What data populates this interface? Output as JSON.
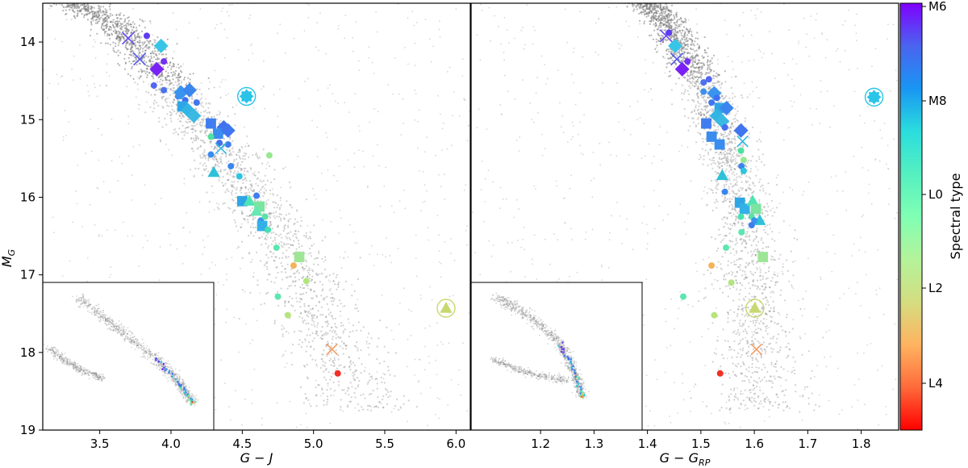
{
  "chart_data": [
    {
      "type": "scatter",
      "panel": "left",
      "xlabel": "G − J",
      "ylabel": "M_G",
      "xlim": [
        3.1,
        6.1
      ],
      "ylim": [
        19.0,
        13.5
      ],
      "y_inverted": true,
      "xticks": [
        "3.5",
        "4.0",
        "4.5",
        "5.0",
        "5.5",
        "6.0"
      ],
      "xtick_values": [
        3.5,
        4.0,
        4.5,
        5.0,
        5.5,
        6.0
      ],
      "yticks": [
        "14",
        "15",
        "16",
        "17",
        "18",
        "19"
      ],
      "ytick_values": [
        14,
        15,
        16,
        17,
        18,
        19
      ],
      "background": "grey density of field stars along the main sequence",
      "inset": "full colour-magnitude diagram with sample highlighted (lower-left)",
      "points": [
        {
          "x": 3.7,
          "y": 13.95,
          "m": "x",
          "c": "#6a4af5",
          "s": 10
        },
        {
          "x": 3.78,
          "y": 14.22,
          "m": "x",
          "c": "#5a5cf0",
          "s": 10
        },
        {
          "x": 3.83,
          "y": 13.92,
          "m": "circle",
          "c": "#5e3cf3",
          "s": 5
        },
        {
          "x": 3.93,
          "y": 14.05,
          "m": "diamond",
          "c": "#39c5e6",
          "s": 9
        },
        {
          "x": 3.9,
          "y": 14.35,
          "m": "diamond",
          "c": "#7a22f5",
          "s": 9
        },
        {
          "x": 3.95,
          "y": 14.25,
          "m": "circle",
          "c": "#7430f4",
          "s": 5
        },
        {
          "x": 3.88,
          "y": 14.56,
          "m": "circle",
          "c": "#5266f0",
          "s": 5
        },
        {
          "x": 3.95,
          "y": 14.62,
          "m": "circle",
          "c": "#4a72ee",
          "s": 5
        },
        {
          "x": 4.05,
          "y": 14.7,
          "m": "circle",
          "c": "#3e8eee",
          "s": 5
        },
        {
          "x": 4.07,
          "y": 14.65,
          "m": "diamond",
          "c": "#3a94ee",
          "s": 9
        },
        {
          "x": 4.13,
          "y": 14.62,
          "m": "diamond",
          "c": "#3a86ee",
          "s": 9
        },
        {
          "x": 4.1,
          "y": 14.75,
          "m": "circle",
          "c": "#3f6ef0",
          "s": 5
        },
        {
          "x": 4.08,
          "y": 14.83,
          "m": "square",
          "c": "#2ea6e6",
          "s": 8
        },
        {
          "x": 4.12,
          "y": 14.88,
          "m": "diamond",
          "c": "#32b5e4",
          "s": 9
        },
        {
          "x": 4.16,
          "y": 14.95,
          "m": "diamond",
          "c": "#3ab9e3",
          "s": 9
        },
        {
          "x": 4.18,
          "y": 14.78,
          "m": "circle",
          "c": "#4276ee",
          "s": 5
        },
        {
          "x": 4.28,
          "y": 15.05,
          "m": "square",
          "c": "#3f7df0",
          "s": 8
        },
        {
          "x": 4.37,
          "y": 15.1,
          "m": "diamond",
          "c": "#3f72f0",
          "s": 9
        },
        {
          "x": 4.33,
          "y": 15.18,
          "m": "square",
          "c": "#3a8cee",
          "s": 8
        },
        {
          "x": 4.4,
          "y": 15.14,
          "m": "diamond",
          "c": "#3f76f0",
          "s": 9
        },
        {
          "x": 4.28,
          "y": 15.22,
          "m": "circle",
          "c": "#50e0a0",
          "s": 5
        },
        {
          "x": 4.34,
          "y": 15.3,
          "m": "circle",
          "c": "#4470ee",
          "s": 5
        },
        {
          "x": 4.4,
          "y": 15.32,
          "m": "circle",
          "c": "#3f7df0",
          "s": 5
        },
        {
          "x": 4.35,
          "y": 15.37,
          "m": "x",
          "c": "#2cb8e6",
          "s": 9
        },
        {
          "x": 4.28,
          "y": 15.45,
          "m": "circle",
          "c": "#3a8cee",
          "s": 5
        },
        {
          "x": 4.3,
          "y": 15.68,
          "m": "triangle",
          "c": "#2ec1d8",
          "s": 8
        },
        {
          "x": 4.42,
          "y": 15.6,
          "m": "circle",
          "c": "#3a86ee",
          "s": 5
        },
        {
          "x": 4.48,
          "y": 15.73,
          "m": "circle",
          "c": "#2ec4e0",
          "s": 5
        },
        {
          "x": 4.69,
          "y": 15.46,
          "m": "circle",
          "c": "#98e890",
          "s": 5
        },
        {
          "x": 4.5,
          "y": 16.05,
          "m": "square",
          "c": "#2ea6e6",
          "s": 8
        },
        {
          "x": 4.55,
          "y": 16.05,
          "m": "triangle",
          "c": "#4ee4b6",
          "s": 8
        },
        {
          "x": 4.6,
          "y": 15.98,
          "m": "circle",
          "c": "#3f7df0",
          "s": 5
        },
        {
          "x": 4.62,
          "y": 16.12,
          "m": "square",
          "c": "#7ae4a0",
          "s": 8
        },
        {
          "x": 4.6,
          "y": 16.18,
          "m": "triangle",
          "c": "#66e8b0",
          "s": 8
        },
        {
          "x": 4.63,
          "y": 16.3,
          "m": "circle",
          "c": "#3a92ee",
          "s": 5
        },
        {
          "x": 4.64,
          "y": 16.37,
          "m": "square",
          "c": "#34b0e8",
          "s": 8
        },
        {
          "x": 4.68,
          "y": 16.42,
          "m": "circle",
          "c": "#4ae0b0",
          "s": 5
        },
        {
          "x": 4.66,
          "y": 16.25,
          "m": "circle",
          "c": "#5ae0a8",
          "s": 5
        },
        {
          "x": 4.74,
          "y": 16.65,
          "m": "circle",
          "c": "#5ee6b0",
          "s": 5
        },
        {
          "x": 4.86,
          "y": 16.88,
          "m": "circle",
          "c": "#f3b35c",
          "s": 5
        },
        {
          "x": 4.9,
          "y": 16.77,
          "m": "square",
          "c": "#9ee696",
          "s": 8
        },
        {
          "x": 4.95,
          "y": 17.08,
          "m": "circle",
          "c": "#b0e680",
          "s": 5
        },
        {
          "x": 4.75,
          "y": 17.28,
          "m": "circle",
          "c": "#5ce6b0",
          "s": 5
        },
        {
          "x": 4.82,
          "y": 17.52,
          "m": "circle",
          "c": "#b8e47c",
          "s": 5
        },
        {
          "x": 5.13,
          "y": 17.96,
          "m": "x",
          "c": "#f59b62",
          "s": 9
        },
        {
          "x": 5.17,
          "y": 18.27,
          "m": "circle",
          "c": "#f03025",
          "s": 5
        },
        {
          "x": 4.53,
          "y": 14.7,
          "m": "star",
          "c": "#2ac4e8",
          "s": 9,
          "ring": true
        },
        {
          "x": 5.93,
          "y": 17.43,
          "m": "triangle",
          "c": "#c8d870",
          "s": 8,
          "ring": true
        }
      ]
    },
    {
      "type": "scatter",
      "panel": "right",
      "xlabel": "G − G_RP",
      "ylabel": "",
      "xlim": [
        1.07,
        1.87
      ],
      "ylim": [
        19.0,
        13.5
      ],
      "y_inverted": true,
      "xticks": [
        "1.2",
        "1.3",
        "1.4",
        "1.5",
        "1.6",
        "1.7",
        "1.8"
      ],
      "xtick_values": [
        1.2,
        1.3,
        1.4,
        1.5,
        1.6,
        1.7,
        1.8
      ],
      "background": "grey density of field stars along the main sequence",
      "inset": "full colour-magnitude diagram with sample highlighted (lower-left)",
      "points": [
        {
          "x": 1.435,
          "y": 13.92,
          "m": "x",
          "c": "#6a4af5",
          "s": 10
        },
        {
          "x": 1.44,
          "y": 13.88,
          "m": "circle",
          "c": "#5e3cf3",
          "s": 5
        },
        {
          "x": 1.452,
          "y": 14.05,
          "m": "diamond",
          "c": "#39c5e6",
          "s": 9
        },
        {
          "x": 1.455,
          "y": 14.22,
          "m": "x",
          "c": "#5a5cf0",
          "s": 10
        },
        {
          "x": 1.465,
          "y": 14.35,
          "m": "diamond",
          "c": "#7a22f5",
          "s": 9
        },
        {
          "x": 1.475,
          "y": 14.25,
          "m": "circle",
          "c": "#7430f4",
          "s": 5
        },
        {
          "x": 1.505,
          "y": 14.52,
          "m": "circle",
          "c": "#4a72ee",
          "s": 5
        },
        {
          "x": 1.515,
          "y": 14.48,
          "m": "circle",
          "c": "#5266f0",
          "s": 5
        },
        {
          "x": 1.505,
          "y": 14.64,
          "m": "circle",
          "c": "#3e8eee",
          "s": 5
        },
        {
          "x": 1.52,
          "y": 14.78,
          "m": "circle",
          "c": "#4276ee",
          "s": 5
        },
        {
          "x": 1.525,
          "y": 14.66,
          "m": "diamond",
          "c": "#3a94ee",
          "s": 9
        },
        {
          "x": 1.53,
          "y": 14.72,
          "m": "circle",
          "c": "#3f6ef0",
          "s": 5
        },
        {
          "x": 1.535,
          "y": 14.85,
          "m": "square",
          "c": "#2ea6e6",
          "s": 8
        },
        {
          "x": 1.53,
          "y": 14.95,
          "m": "diamond",
          "c": "#32b5e4",
          "s": 9
        },
        {
          "x": 1.548,
          "y": 14.85,
          "m": "diamond",
          "c": "#3a86ee",
          "s": 9
        },
        {
          "x": 1.54,
          "y": 15.02,
          "m": "diamond",
          "c": "#3ab9e3",
          "s": 9
        },
        {
          "x": 1.51,
          "y": 15.05,
          "m": "square",
          "c": "#3f7df0",
          "s": 8
        },
        {
          "x": 1.52,
          "y": 15.22,
          "m": "square",
          "c": "#3a8cee",
          "s": 8
        },
        {
          "x": 1.535,
          "y": 15.32,
          "m": "square",
          "c": "#3a8cee",
          "s": 8
        },
        {
          "x": 1.545,
          "y": 15.1,
          "m": "circle",
          "c": "#4470ee",
          "s": 5
        },
        {
          "x": 1.575,
          "y": 15.14,
          "m": "diamond",
          "c": "#3f76f0",
          "s": 9
        },
        {
          "x": 1.575,
          "y": 15.4,
          "m": "circle",
          "c": "#50e0a0",
          "s": 5
        },
        {
          "x": 1.578,
          "y": 15.28,
          "m": "x",
          "c": "#2cb8e6",
          "s": 9
        },
        {
          "x": 1.58,
          "y": 15.52,
          "m": "circle",
          "c": "#98e890",
          "s": 5
        },
        {
          "x": 1.576,
          "y": 15.6,
          "m": "circle",
          "c": "#3a86ee",
          "s": 5
        },
        {
          "x": 1.58,
          "y": 15.66,
          "m": "circle",
          "c": "#2ec4e0",
          "s": 5
        },
        {
          "x": 1.54,
          "y": 15.72,
          "m": "triangle",
          "c": "#2ec1d8",
          "s": 8
        },
        {
          "x": 1.545,
          "y": 15.93,
          "m": "circle",
          "c": "#3a86ee",
          "s": 5
        },
        {
          "x": 1.573,
          "y": 16.07,
          "m": "square",
          "c": "#2ea6e6",
          "s": 8
        },
        {
          "x": 1.582,
          "y": 16.15,
          "m": "square",
          "c": "#34b0e8",
          "s": 8
        },
        {
          "x": 1.597,
          "y": 16.05,
          "m": "triangle",
          "c": "#4ee4b6",
          "s": 8
        },
        {
          "x": 1.603,
          "y": 16.15,
          "m": "square",
          "c": "#7ae4a0",
          "s": 8
        },
        {
          "x": 1.61,
          "y": 16.3,
          "m": "triangle",
          "c": "#2ec1d8",
          "s": 8
        },
        {
          "x": 1.595,
          "y": 16.25,
          "m": "circle",
          "c": "#5ae0a8",
          "s": 5
        },
        {
          "x": 1.6,
          "y": 16.3,
          "m": "circle",
          "c": "#3a92ee",
          "s": 5
        },
        {
          "x": 1.595,
          "y": 16.36,
          "m": "circle",
          "c": "#3f7df0",
          "s": 5
        },
        {
          "x": 1.575,
          "y": 16.25,
          "m": "circle",
          "c": "#4ae0b0",
          "s": 5
        },
        {
          "x": 1.576,
          "y": 16.45,
          "m": "circle",
          "c": "#5ce6b0",
          "s": 5
        },
        {
          "x": 1.616,
          "y": 16.77,
          "m": "square",
          "c": "#9ee696",
          "s": 8
        },
        {
          "x": 1.547,
          "y": 16.65,
          "m": "circle",
          "c": "#5ee6b0",
          "s": 5
        },
        {
          "x": 1.52,
          "y": 16.88,
          "m": "circle",
          "c": "#f3b35c",
          "s": 5
        },
        {
          "x": 1.557,
          "y": 17.1,
          "m": "circle",
          "c": "#b0e680",
          "s": 5
        },
        {
          "x": 1.467,
          "y": 17.28,
          "m": "circle",
          "c": "#5ce6b0",
          "s": 5
        },
        {
          "x": 1.525,
          "y": 17.52,
          "m": "circle",
          "c": "#b8e47c",
          "s": 5
        },
        {
          "x": 1.604,
          "y": 17.96,
          "m": "x",
          "c": "#f59b62",
          "s": 9
        },
        {
          "x": 1.536,
          "y": 18.27,
          "m": "circle",
          "c": "#f03025",
          "s": 5
        },
        {
          "x": 1.824,
          "y": 14.71,
          "m": "star",
          "c": "#2ac4e8",
          "s": 9,
          "ring": true
        },
        {
          "x": 1.601,
          "y": 17.43,
          "m": "triangle",
          "c": "#c8d870",
          "s": 8,
          "ring": true
        }
      ]
    }
  ],
  "colorbar": {
    "label": "Spectral type",
    "ticks": [
      "M6",
      "M8",
      "L0",
      "L2",
      "L4"
    ],
    "colors": [
      "#8000ff",
      "#4a64f0",
      "#1996f3",
      "#2adddd",
      "#55f0c0",
      "#80ffb4",
      "#b4f39a",
      "#d4dd80",
      "#ffb360",
      "#ff6a3a",
      "#ff0000"
    ]
  }
}
